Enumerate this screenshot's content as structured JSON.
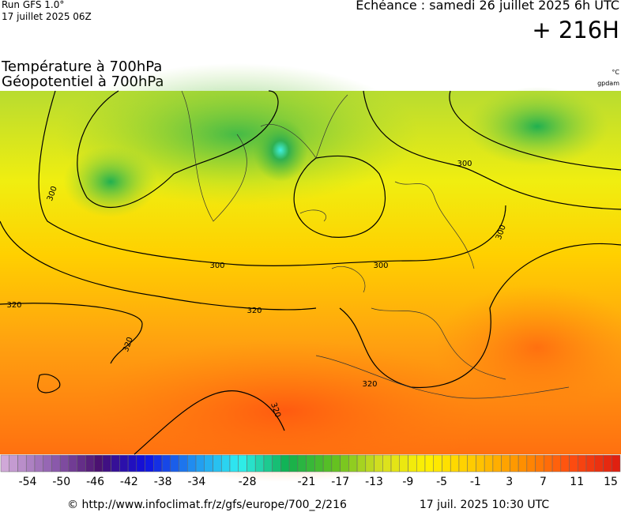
{
  "header": {
    "run": "Run GFS 1.0°",
    "date": "17 juillet 2025 06Z",
    "echeance": "Echéance : samedi 26 juillet 2025 6h UTC",
    "lead": "+ 216H"
  },
  "titles": {
    "line1": "Température à 700hPa",
    "line2": "Géopotentiel à 700hPa",
    "unit1": "°C",
    "unit2": "gpdam"
  },
  "contour_labels": [
    300,
    300,
    300,
    300,
    300,
    320,
    320,
    320,
    320,
    320
  ],
  "colorbar": {
    "labels": [
      -54,
      -50,
      -46,
      -42,
      -38,
      -34,
      -28,
      -21,
      -17,
      -13,
      -9,
      -5,
      -1,
      3,
      7,
      11,
      15
    ],
    "colors": [
      "#d0a8d8",
      "#9060b0",
      "#4a1070",
      "#1010e0",
      "#2090f0",
      "#30f0f0",
      "#10b050",
      "#60c020",
      "#d8e020",
      "#fff000",
      "#ffc800",
      "#ff9000",
      "#ff5010",
      "#e02010"
    ]
  },
  "footer": {
    "url": "© http://www.infoclimat.fr/z/gfs/europe/700_2/216",
    "time": "17 juil. 2025 10:30 UTC"
  }
}
